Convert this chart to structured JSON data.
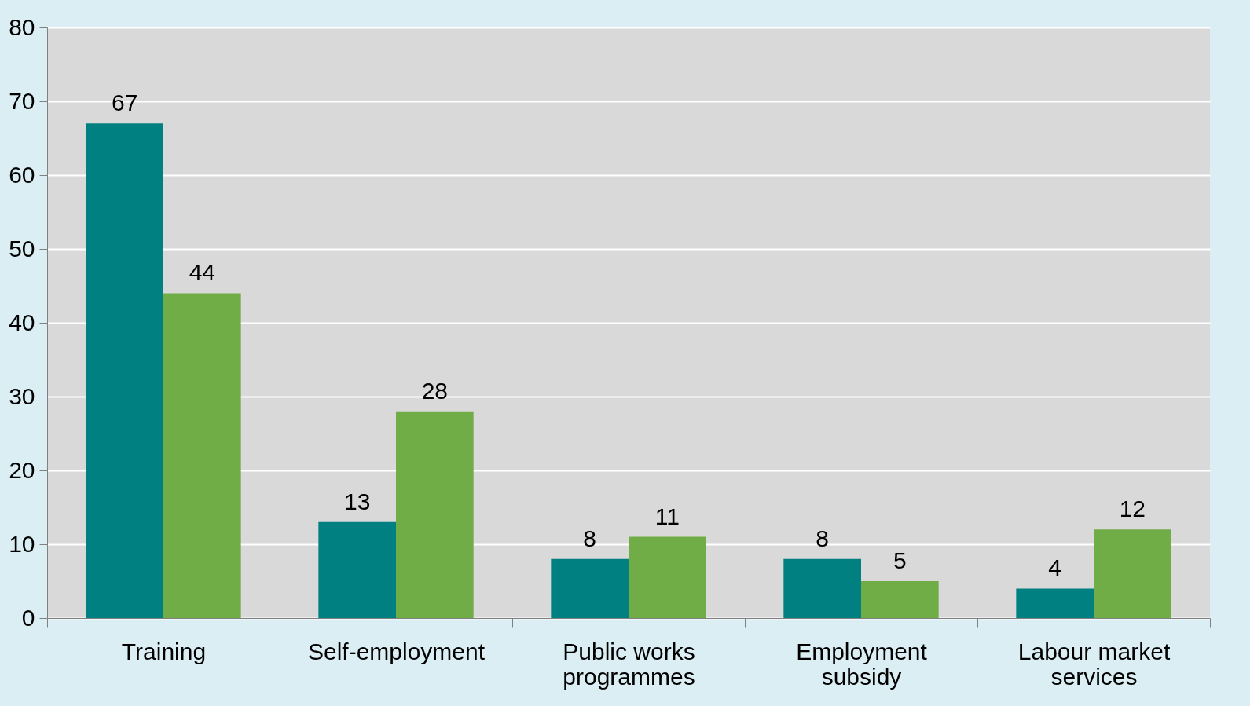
{
  "chart_data": {
    "type": "bar",
    "categories": [
      "Training",
      "Self-employment",
      "Public works programmes",
      "Employment subsidy",
      "Labour market services"
    ],
    "series": [
      {
        "color": "#008080",
        "values": [
          67,
          13,
          8,
          8,
          4
        ]
      },
      {
        "color": "#70ad47",
        "values": [
          44,
          28,
          11,
          5,
          12
        ]
      }
    ],
    "ylim": [
      0,
      80
    ],
    "yticks": [
      0,
      10,
      20,
      30,
      40,
      50,
      60,
      70,
      80
    ],
    "grid": "y",
    "data_labels": true
  }
}
